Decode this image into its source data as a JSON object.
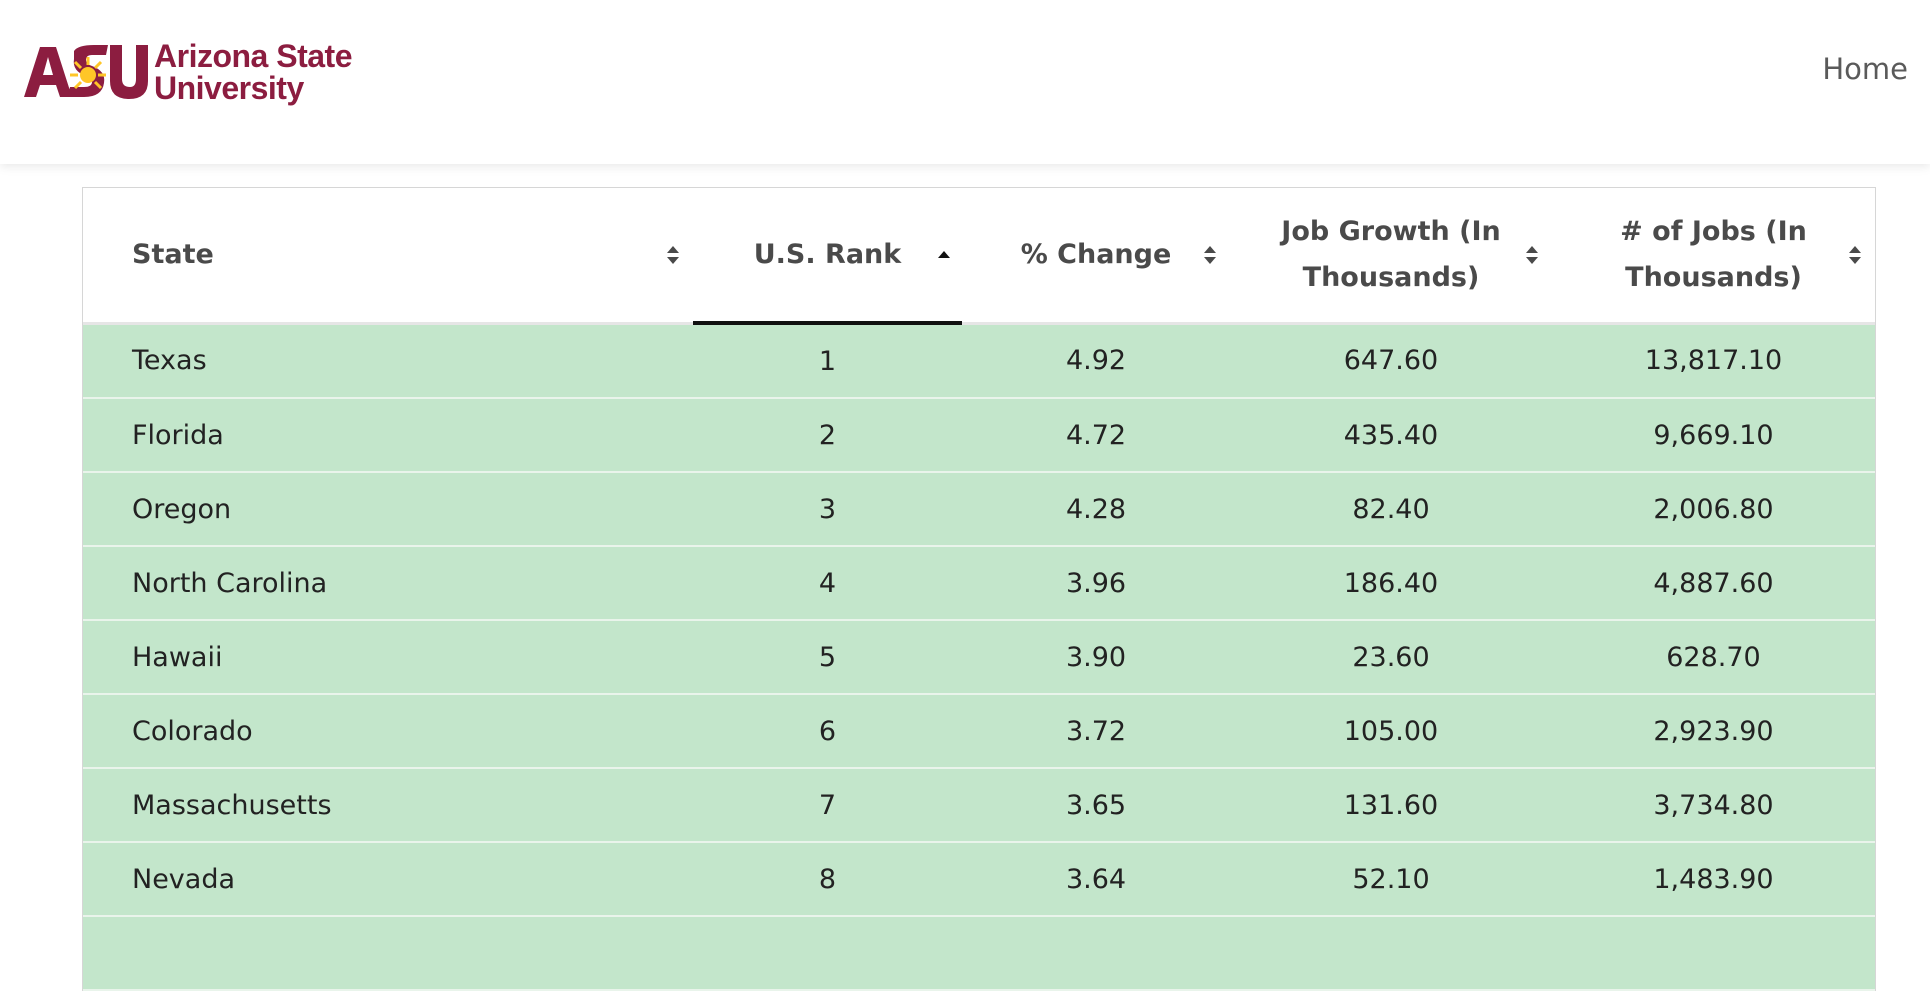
{
  "header": {
    "logo_text_line1": "Arizona State",
    "logo_text_line2": "University",
    "logo_mark_text": "ASU",
    "nav_home": "Home"
  },
  "colors": {
    "brand_maroon": "#8c1d40",
    "brand_gold": "#ffc627",
    "row_green": "#c3e6cb",
    "sorted_underline": "#111111"
  },
  "table": {
    "columns": [
      {
        "label": "State",
        "sort": "both"
      },
      {
        "label": "U.S. Rank",
        "sort": "ascending"
      },
      {
        "label": "% Change",
        "sort": "both"
      },
      {
        "label": "Job Growth (In Thousands)",
        "sort": "both"
      },
      {
        "label": "# of Jobs (In Thousands)",
        "sort": "both"
      }
    ],
    "rows": [
      [
        "Texas",
        "1",
        "4.92",
        "647.60",
        "13,817.10"
      ],
      [
        "Florida",
        "2",
        "4.72",
        "435.40",
        "9,669.10"
      ],
      [
        "Oregon",
        "3",
        "4.28",
        "82.40",
        "2,006.80"
      ],
      [
        "North Carolina",
        "4",
        "3.96",
        "186.40",
        "4,887.60"
      ],
      [
        "Hawaii",
        "5",
        "3.90",
        "23.60",
        "628.70"
      ],
      [
        "Colorado",
        "6",
        "3.72",
        "105.00",
        "2,923.90"
      ],
      [
        "Massachusetts",
        "7",
        "3.65",
        "131.60",
        "3,734.80"
      ],
      [
        "Nevada",
        "8",
        "3.64",
        "52.10",
        "1,483.90"
      ],
      [
        "",
        "",
        "",
        "",
        ""
      ]
    ]
  }
}
